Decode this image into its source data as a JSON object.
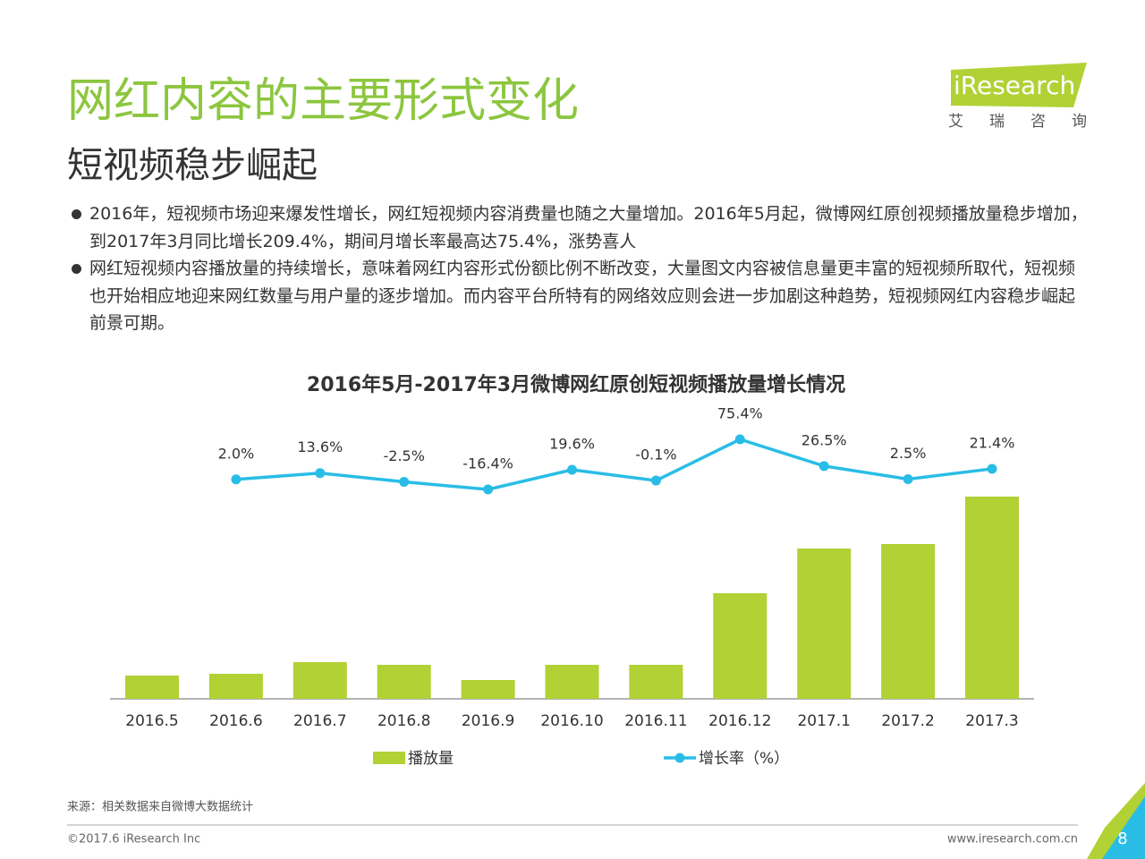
{
  "title": "网红内容的主要形式变化",
  "subtitle": "短视频稳步崛起",
  "logo": {
    "brand": "iResearch",
    "cn": "艾 瑞 咨 询"
  },
  "bullets": [
    "2016年，短视频市场迎来爆发性增长，网红短视频内容消费量也随之大量增加。2016年5月起，微博网红原创视频播放量稳步增加，到2017年3月同比增长209.4%，期间月增长率最高达75.4%，涨势喜人",
    "网红短视频内容播放量的持续增长，意味着网红内容形式份额比例不断改变，大量图文内容被信息量更丰富的短视频所取代，短视频也开始相应地迎来网红数量与用户量的逐步增加。而内容平台所特有的网络效应则会进一步加剧这种趋势，短视频网红内容稳步崛起前景可期。"
  ],
  "source": "来源：相关数据来自微博大数据统计",
  "copyright": "©2017.6 iResearch Inc",
  "website": "www.iresearch.com.cn",
  "page_number": "8",
  "chart_data": {
    "type": "bar_line",
    "title": "2016年5月-2017年3月微博网红原创短视频播放量增长情况",
    "categories": [
      "2016.5",
      "2016.6",
      "2016.7",
      "2016.8",
      "2016.9",
      "2016.10",
      "2016.11",
      "2016.12",
      "2017.1",
      "2017.2",
      "2017.3"
    ],
    "series": [
      {
        "name": "播放量",
        "color": "#b1d135",
        "type": "bar",
        "values": [
          26,
          28,
          41,
          38,
          21,
          38,
          38,
          118,
          168,
          173,
          226
        ]
      },
      {
        "name": "增长率（%）",
        "color": "#29bde6",
        "type": "line",
        "values": [
          null,
          2.0,
          13.6,
          -2.5,
          -16.4,
          19.6,
          -0.1,
          75.4,
          26.5,
          2.5,
          21.4
        ],
        "value_labels": [
          null,
          "2.0%",
          "13.6%",
          "-2.5%",
          "-16.4%",
          "19.6%",
          "-0.1%",
          "75.4%",
          "26.5%",
          "2.5%",
          "21.4%"
        ]
      }
    ],
    "legend": "bottom"
  }
}
